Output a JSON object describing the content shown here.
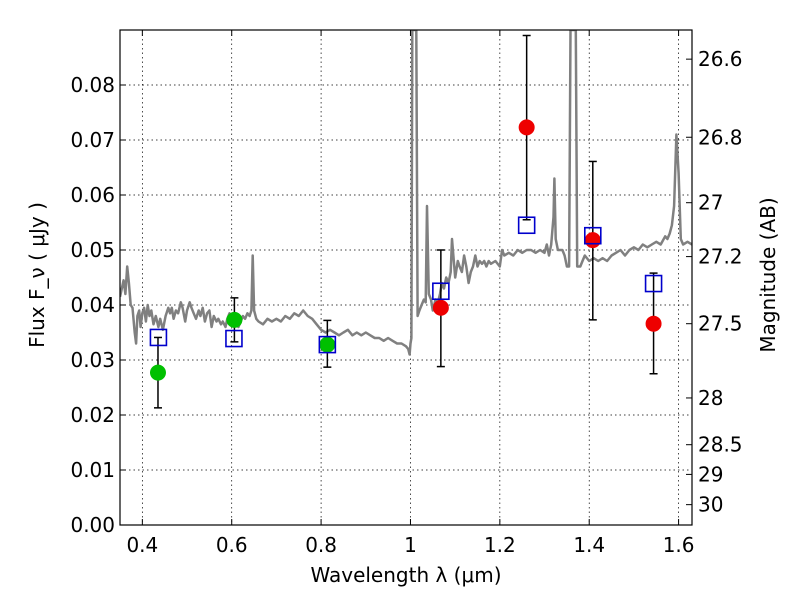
{
  "chart_data": {
    "type": "scatter",
    "xlabel": "Wavelength  λ (μm)",
    "ylabel": "Flux  F_ν  ( μJy )",
    "ylabel_right": "Magnitude (AB)",
    "xlim": [
      0.35,
      1.63
    ],
    "ylim": [
      0.0,
      0.09
    ],
    "grid": true,
    "x_ticks": [
      0.4,
      0.6,
      0.8,
      1.0,
      1.2,
      1.4,
      1.6
    ],
    "x_tick_labels": [
      "0.4",
      "0.6",
      "0.8",
      "1",
      "1.2",
      "1.4",
      "1.6"
    ],
    "y_ticks": [
      0.0,
      0.01,
      0.02,
      0.03,
      0.04,
      0.05,
      0.06,
      0.07,
      0.08
    ],
    "y_tick_labels": [
      "0.00",
      "0.01",
      "0.02",
      "0.03",
      "0.04",
      "0.05",
      "0.06",
      "0.07",
      "0.08"
    ],
    "right_ticks": [
      {
        "label": "26.6",
        "flux": 0.0847
      },
      {
        "label": "26.8",
        "flux": 0.0705
      },
      {
        "label": "27",
        "flux": 0.0586
      },
      {
        "label": "27.2",
        "flux": 0.0488
      },
      {
        "label": "27.5",
        "flux": 0.0366
      },
      {
        "label": "28",
        "flux": 0.0231
      },
      {
        "label": "28.5",
        "flux": 0.0146
      },
      {
        "label": "29",
        "flux": 0.0092
      },
      {
        "label": "30",
        "flux": 0.0037
      }
    ],
    "series": [
      {
        "marker": "circle",
        "color": "#00c000",
        "points": [
          {
            "x": 0.435,
            "y": 0.0277,
            "err_low": 0.0213,
            "err_high": 0.0341
          },
          {
            "x": 0.606,
            "y": 0.0373,
            "err_low": 0.0333,
            "err_high": 0.0413
          },
          {
            "x": 0.814,
            "y": 0.0328,
            "err_low": 0.0287,
            "err_high": 0.0372
          }
        ]
      },
      {
        "marker": "circle",
        "color": "#ee0000",
        "points": [
          {
            "x": 1.068,
            "y": 0.0395,
            "err_low": 0.0288,
            "err_high": 0.05
          },
          {
            "x": 1.26,
            "y": 0.0723,
            "err_low": 0.0555,
            "err_high": 0.089
          },
          {
            "x": 1.408,
            "y": 0.0518,
            "err_low": 0.0373,
            "err_high": 0.0661
          },
          {
            "x": 1.544,
            "y": 0.0366,
            "err_low": 0.0275,
            "err_high": 0.0458
          }
        ]
      },
      {
        "marker": "square-open",
        "color": "#0000cc",
        "points": [
          {
            "x": 0.436,
            "y": 0.0341
          },
          {
            "x": 0.605,
            "y": 0.0339
          },
          {
            "x": 0.814,
            "y": 0.0328
          },
          {
            "x": 1.068,
            "y": 0.0425
          },
          {
            "x": 1.26,
            "y": 0.0545
          },
          {
            "x": 1.408,
            "y": 0.0526
          },
          {
            "x": 1.544,
            "y": 0.0439
          }
        ]
      },
      {
        "type": "line",
        "color": "#808080",
        "points": [
          [
            0.35,
            0.0415
          ],
          [
            0.358,
            0.0445
          ],
          [
            0.362,
            0.042
          ],
          [
            0.366,
            0.047
          ],
          [
            0.37,
            0.044
          ],
          [
            0.374,
            0.04
          ],
          [
            0.378,
            0.0395
          ],
          [
            0.383,
            0.035
          ],
          [
            0.386,
            0.033
          ],
          [
            0.389,
            0.038
          ],
          [
            0.393,
            0.039
          ],
          [
            0.396,
            0.036
          ],
          [
            0.4,
            0.0385
          ],
          [
            0.404,
            0.0395
          ],
          [
            0.408,
            0.037
          ],
          [
            0.412,
            0.04
          ],
          [
            0.416,
            0.038
          ],
          [
            0.42,
            0.039
          ],
          [
            0.425,
            0.0365
          ],
          [
            0.43,
            0.038
          ],
          [
            0.436,
            0.036
          ],
          [
            0.44,
            0.0375
          ],
          [
            0.446,
            0.0355
          ],
          [
            0.452,
            0.038
          ],
          [
            0.458,
            0.0395
          ],
          [
            0.462,
            0.0385
          ],
          [
            0.466,
            0.0395
          ],
          [
            0.47,
            0.0375
          ],
          [
            0.475,
            0.039
          ],
          [
            0.48,
            0.0385
          ],
          [
            0.486,
            0.0405
          ],
          [
            0.49,
            0.0395
          ],
          [
            0.496,
            0.037
          ],
          [
            0.5,
            0.039
          ],
          [
            0.506,
            0.0405
          ],
          [
            0.51,
            0.0395
          ],
          [
            0.515,
            0.0385
          ],
          [
            0.52,
            0.0375
          ],
          [
            0.526,
            0.039
          ],
          [
            0.53,
            0.038
          ],
          [
            0.535,
            0.0395
          ],
          [
            0.54,
            0.037
          ],
          [
            0.545,
            0.0385
          ],
          [
            0.55,
            0.039
          ],
          [
            0.555,
            0.036
          ],
          [
            0.56,
            0.038
          ],
          [
            0.566,
            0.037
          ],
          [
            0.57,
            0.0375
          ],
          [
            0.576,
            0.0365
          ],
          [
            0.58,
            0.037
          ],
          [
            0.586,
            0.036
          ],
          [
            0.59,
            0.0375
          ],
          [
            0.595,
            0.0385
          ],
          [
            0.6,
            0.037
          ],
          [
            0.605,
            0.038
          ],
          [
            0.61,
            0.0375
          ],
          [
            0.615,
            0.036
          ],
          [
            0.62,
            0.037
          ],
          [
            0.625,
            0.038
          ],
          [
            0.63,
            0.0375
          ],
          [
            0.635,
            0.0385
          ],
          [
            0.64,
            0.038
          ],
          [
            0.644,
            0.039
          ],
          [
            0.647,
            0.049
          ],
          [
            0.65,
            0.039
          ],
          [
            0.655,
            0.0375
          ],
          [
            0.66,
            0.037
          ],
          [
            0.67,
            0.0365
          ],
          [
            0.68,
            0.0375
          ],
          [
            0.69,
            0.037
          ],
          [
            0.7,
            0.0375
          ],
          [
            0.71,
            0.037
          ],
          [
            0.72,
            0.038
          ],
          [
            0.73,
            0.0375
          ],
          [
            0.74,
            0.0385
          ],
          [
            0.75,
            0.038
          ],
          [
            0.76,
            0.039
          ],
          [
            0.77,
            0.038
          ],
          [
            0.78,
            0.0375
          ],
          [
            0.79,
            0.0365
          ],
          [
            0.8,
            0.0355
          ],
          [
            0.81,
            0.035
          ],
          [
            0.82,
            0.0355
          ],
          [
            0.83,
            0.035
          ],
          [
            0.84,
            0.0345
          ],
          [
            0.85,
            0.035
          ],
          [
            0.86,
            0.0355
          ],
          [
            0.87,
            0.0345
          ],
          [
            0.88,
            0.035
          ],
          [
            0.89,
            0.0345
          ],
          [
            0.9,
            0.035
          ],
          [
            0.91,
            0.0345
          ],
          [
            0.92,
            0.034
          ],
          [
            0.93,
            0.034
          ],
          [
            0.94,
            0.0335
          ],
          [
            0.95,
            0.034
          ],
          [
            0.96,
            0.0335
          ],
          [
            0.97,
            0.033
          ],
          [
            0.98,
            0.033
          ],
          [
            0.99,
            0.0325
          ],
          [
            0.995,
            0.032
          ],
          [
            0.998,
            0.031
          ],
          [
            1.0,
            0.033
          ],
          [
            1.002,
            0.034
          ],
          [
            1.004,
            0.09
          ],
          [
            1.007,
            0.09
          ],
          [
            1.01,
            0.09
          ],
          [
            1.013,
            0.09
          ],
          [
            1.016,
            0.038
          ],
          [
            1.02,
            0.039
          ],
          [
            1.025,
            0.04
          ],
          [
            1.03,
            0.041
          ],
          [
            1.034,
            0.0405
          ],
          [
            1.037,
            0.058
          ],
          [
            1.041,
            0.042
          ],
          [
            1.046,
            0.041
          ],
          [
            1.05,
            0.039
          ],
          [
            1.056,
            0.041
          ],
          [
            1.06,
            0.04
          ],
          [
            1.066,
            0.042
          ],
          [
            1.07,
            0.044
          ],
          [
            1.075,
            0.043
          ],
          [
            1.08,
            0.045
          ],
          [
            1.085,
            0.044
          ],
          [
            1.09,
            0.046
          ],
          [
            1.093,
            0.052
          ],
          [
            1.095,
            0.05
          ],
          [
            1.1,
            0.045
          ],
          [
            1.106,
            0.048
          ],
          [
            1.11,
            0.047
          ],
          [
            1.115,
            0.046
          ],
          [
            1.12,
            0.049
          ],
          [
            1.125,
            0.047
          ],
          [
            1.13,
            0.044
          ],
          [
            1.135,
            0.046
          ],
          [
            1.14,
            0.047
          ],
          [
            1.145,
            0.049
          ],
          [
            1.15,
            0.047
          ],
          [
            1.155,
            0.048
          ],
          [
            1.16,
            0.0475
          ],
          [
            1.165,
            0.048
          ],
          [
            1.17,
            0.047
          ],
          [
            1.175,
            0.048
          ],
          [
            1.18,
            0.0475
          ],
          [
            1.19,
            0.048
          ],
          [
            1.2,
            0.047
          ],
          [
            1.205,
            0.05
          ],
          [
            1.21,
            0.049
          ],
          [
            1.22,
            0.0495
          ],
          [
            1.23,
            0.049
          ],
          [
            1.24,
            0.05
          ],
          [
            1.25,
            0.0495
          ],
          [
            1.26,
            0.05
          ],
          [
            1.27,
            0.05
          ],
          [
            1.28,
            0.0495
          ],
          [
            1.29,
            0.05
          ],
          [
            1.3,
            0.0495
          ],
          [
            1.305,
            0.051
          ],
          [
            1.31,
            0.049
          ],
          [
            1.315,
            0.051
          ],
          [
            1.32,
            0.056
          ],
          [
            1.322,
            0.063
          ],
          [
            1.325,
            0.052
          ],
          [
            1.33,
            0.05
          ],
          [
            1.34,
            0.05
          ],
          [
            1.345,
            0.049
          ],
          [
            1.35,
            0.047
          ],
          [
            1.355,
            0.047
          ],
          [
            1.358,
            0.09
          ],
          [
            1.362,
            0.09
          ],
          [
            1.366,
            0.09
          ],
          [
            1.37,
            0.09
          ],
          [
            1.373,
            0.047
          ],
          [
            1.38,
            0.047
          ],
          [
            1.385,
            0.048
          ],
          [
            1.39,
            0.049
          ],
          [
            1.4,
            0.048
          ],
          [
            1.41,
            0.0485
          ],
          [
            1.42,
            0.048
          ],
          [
            1.43,
            0.0485
          ],
          [
            1.44,
            0.048
          ],
          [
            1.45,
            0.049
          ],
          [
            1.46,
            0.0495
          ],
          [
            1.47,
            0.05
          ],
          [
            1.48,
            0.049
          ],
          [
            1.49,
            0.05
          ],
          [
            1.5,
            0.0505
          ],
          [
            1.51,
            0.05
          ],
          [
            1.52,
            0.051
          ],
          [
            1.53,
            0.0505
          ],
          [
            1.54,
            0.051
          ],
          [
            1.55,
            0.0515
          ],
          [
            1.56,
            0.051
          ],
          [
            1.57,
            0.0525
          ],
          [
            1.575,
            0.052
          ],
          [
            1.58,
            0.053
          ],
          [
            1.585,
            0.0545
          ],
          [
            1.59,
            0.058
          ],
          [
            1.595,
            0.071
          ],
          [
            1.6,
            0.064
          ],
          [
            1.605,
            0.052
          ],
          [
            1.61,
            0.051
          ],
          [
            1.62,
            0.0515
          ],
          [
            1.63,
            0.051
          ]
        ]
      }
    ]
  }
}
